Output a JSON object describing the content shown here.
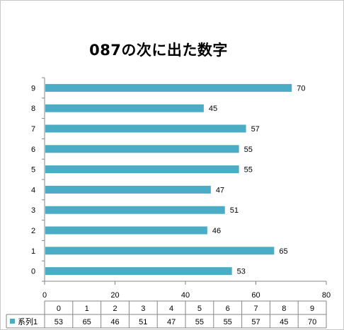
{
  "chart_data": {
    "type": "bar",
    "orientation": "horizontal",
    "title": "087の次に出た数字",
    "categories": [
      "0",
      "1",
      "2",
      "3",
      "4",
      "5",
      "6",
      "7",
      "8",
      "9"
    ],
    "series": [
      {
        "name": "系列1",
        "values": [
          53,
          65,
          46,
          51,
          47,
          55,
          55,
          57,
          45,
          70
        ]
      }
    ],
    "xlim": [
      0,
      80
    ],
    "x_ticks": [
      "0",
      "20",
      "40",
      "60",
      "80"
    ],
    "grid": false,
    "legend": "data-table",
    "data_table": true
  },
  "colors": {
    "bar": "#4bacc6",
    "axis": "#868686",
    "table_border": "#868686"
  }
}
